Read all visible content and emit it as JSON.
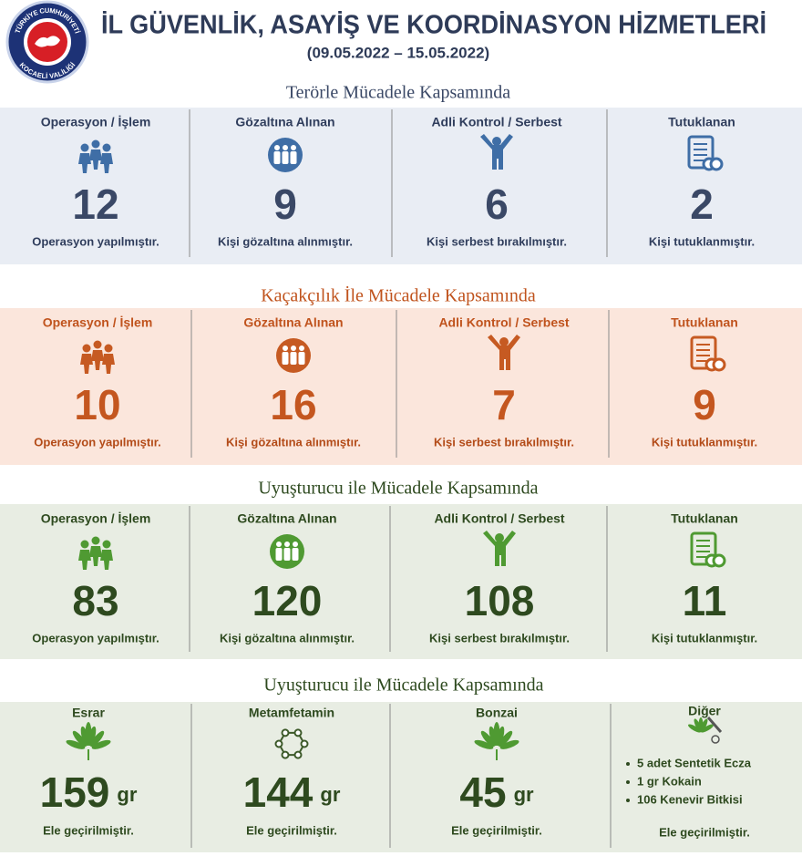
{
  "header": {
    "title": "İL GÜVENLİK, ASAYİŞ VE KOORDİNASYON HİZMETLERİ",
    "date_range": "(09.05.2022 – 15.05.2022)",
    "logo": {
      "top": "TÜRKİYE CUMHURİYETİ",
      "bottom": "KOCAELİ VALİLİĞİ"
    }
  },
  "sections": [
    {
      "title": "Terörle Mücadele Kapsamında",
      "cells": [
        {
          "label": "Operasyon / İşlem",
          "number": 12,
          "caption": "Operasyon yapılmıştır."
        },
        {
          "label": "Gözaltına Alınan",
          "number": 9,
          "caption": "Kişi gözaltına alınmıştır."
        },
        {
          "label": "Adli Kontrol / Serbest",
          "number": 6,
          "caption": "Kişi serbest bırakılmıştır."
        },
        {
          "label": "Tutuklanan",
          "number": 2,
          "caption": "Kişi tutuklanmıştır."
        }
      ]
    },
    {
      "title": "Kaçakçılık İle Mücadele Kapsamında",
      "cells": [
        {
          "label": "Operasyon / İşlem",
          "number": 10,
          "caption": "Operasyon yapılmıştır."
        },
        {
          "label": "Gözaltına Alınan",
          "number": 16,
          "caption": "Kişi gözaltına alınmıştır."
        },
        {
          "label": "Adli Kontrol / Serbest",
          "number": 7,
          "caption": "Kişi serbest bırakılmıştır."
        },
        {
          "label": "Tutuklanan",
          "number": 9,
          "caption": "Kişi tutuklanmıştır."
        }
      ]
    },
    {
      "title": "Uyuşturucu ile Mücadele Kapsamında",
      "cells": [
        {
          "label": "Operasyon / İşlem",
          "number": 83,
          "caption": "Operasyon yapılmıştır."
        },
        {
          "label": "Gözaltına Alınan",
          "number": 120,
          "caption": "Kişi gözaltına alınmıştır."
        },
        {
          "label": "Adli Kontrol / Serbest",
          "number": 108,
          "caption": "Kişi serbest bırakılmıştır."
        },
        {
          "label": "Tutuklanan",
          "number": 11,
          "caption": "Kişi tutuklanmıştır."
        }
      ]
    }
  ],
  "drugs_section": {
    "title": "Uyuşturucu ile Mücadele Kapsamında",
    "cells": [
      {
        "label": "Esrar",
        "number": 159,
        "unit": "gr",
        "caption": "Ele geçirilmiştir."
      },
      {
        "label": "Metamfetamin",
        "number": 144,
        "unit": "gr",
        "caption": "Ele geçirilmiştir."
      },
      {
        "label": "Bonzai",
        "number": 45,
        "unit": "gr",
        "caption": "Ele geçirilmiştir."
      }
    ],
    "other": {
      "label": "Diğer",
      "items": [
        "5 adet Sentetik Ecza",
        "1 gr Kokain",
        "106 Kenevir Bitkisi"
      ],
      "caption": "Ele geçirilmiştir."
    }
  }
}
